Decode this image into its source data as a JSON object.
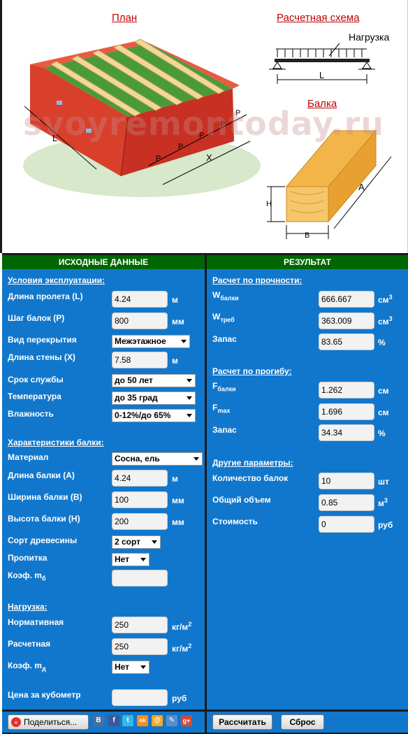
{
  "headings": {
    "plan": "План",
    "scheme": "Расчетная схема",
    "beam": "Балка"
  },
  "diagram_labels": {
    "load": "Нагрузка",
    "span": "L",
    "plan_L": "L",
    "plan_P": "P",
    "plan_X": "X",
    "beam_A": "A",
    "beam_H": "H",
    "beam_B": "B"
  },
  "watermark": "svoyremontoday.ru",
  "left": {
    "header": "ИСХОДНЫЕ ДАННЫЕ",
    "conditions_title": "Условия эксплуатации:",
    "span_label": "Длина пролета (L)",
    "span_value": "4.24",
    "span_unit": "м",
    "step_label": "Шаг балок (P)",
    "step_value": "800",
    "step_unit": "мм",
    "floor_label": "Вид перекрытия",
    "floor_value": "Межэтажное",
    "wall_label": "Длина стены (X)",
    "wall_value": "7.58",
    "wall_unit": "м",
    "life_label": "Срок службы",
    "life_value": "до 50 лет",
    "temp_label": "Температура",
    "temp_value": "до 35 град",
    "hum_label": "Влажность",
    "hum_value": "0-12%/до 65%",
    "beam_title": "Характеристики балки:",
    "mat_label": "Материал",
    "mat_value": "Сосна, ель",
    "blen_label": "Длина балки (A)",
    "blen_value": "4.24",
    "blen_unit": "м",
    "bwid_label": "Ширина балки (B)",
    "bwid_value": "100",
    "bwid_unit": "мм",
    "bhei_label": "Высота балки (H)",
    "bhei_value": "200",
    "bhei_unit": "мм",
    "grade_label": "Сорт древесины",
    "grade_value": "2 сорт",
    "imp_label": "Пропитка",
    "imp_value": "Нет",
    "coef_mb_label": "Коэф. m",
    "coef_mb_sub": "б",
    "coef_mb_value": "",
    "load_title": "Нагрузка:",
    "norm_label": "Нормативная",
    "norm_value": "250",
    "norm_unit": "кг/м",
    "norm_unit_sup": "2",
    "calc_label": "Расчетная",
    "calc_value": "250",
    "calc_unit": "кг/м",
    "calc_unit_sup": "2",
    "coef_md_label": "Коэф. m",
    "coef_md_sub": "д",
    "coef_md_value": "Нет",
    "price_label": "Цена за кубометр",
    "price_value": "",
    "price_unit": "руб"
  },
  "right": {
    "header": "РЕЗУЛЬТАТ",
    "strength_title": "Расчет по прочности:",
    "wb_label": "W",
    "wb_sub": "балки",
    "wb_value": "666.667",
    "wb_unit": "см",
    "wb_unit_sup": "3",
    "wt_label": "W",
    "wt_sub": "треб",
    "wt_value": "363.009",
    "wt_unit": "см",
    "wt_unit_sup": "3",
    "reserve1_label": "Запас",
    "reserve1_value": "83.65",
    "reserve1_unit": "%",
    "defl_title": "Расчет по прогибу:",
    "fb_label": "F",
    "fb_sub": "балки",
    "fb_value": "1.262",
    "fb_unit": "см",
    "fm_label": "F",
    "fm_sub": "max",
    "fm_value": "1.696",
    "fm_unit": "см",
    "reserve2_label": "Запас",
    "reserve2_value": "34.34",
    "reserve2_unit": "%",
    "other_title": "Другие параметры:",
    "count_label": "Количество балок",
    "count_value": "10",
    "count_unit": "шт",
    "vol_label": "Общий объем",
    "vol_value": "0.85",
    "vol_unit": "м",
    "vol_unit_sup": "3",
    "cost_label": "Стоимость",
    "cost_value": "0",
    "cost_unit": "руб"
  },
  "buttons": {
    "share": "Поделиться...",
    "calculate": "Рассчитать",
    "reset": "Сброс"
  },
  "social": {
    "vk": "B",
    "fb": "f",
    "tw": "t",
    "ok": "ok",
    "mail": "@",
    "lj": "✎",
    "gp": "g+"
  },
  "colors": {
    "panel": "#1177cc",
    "header_green": "#006600",
    "heading_red": "#c00000"
  }
}
